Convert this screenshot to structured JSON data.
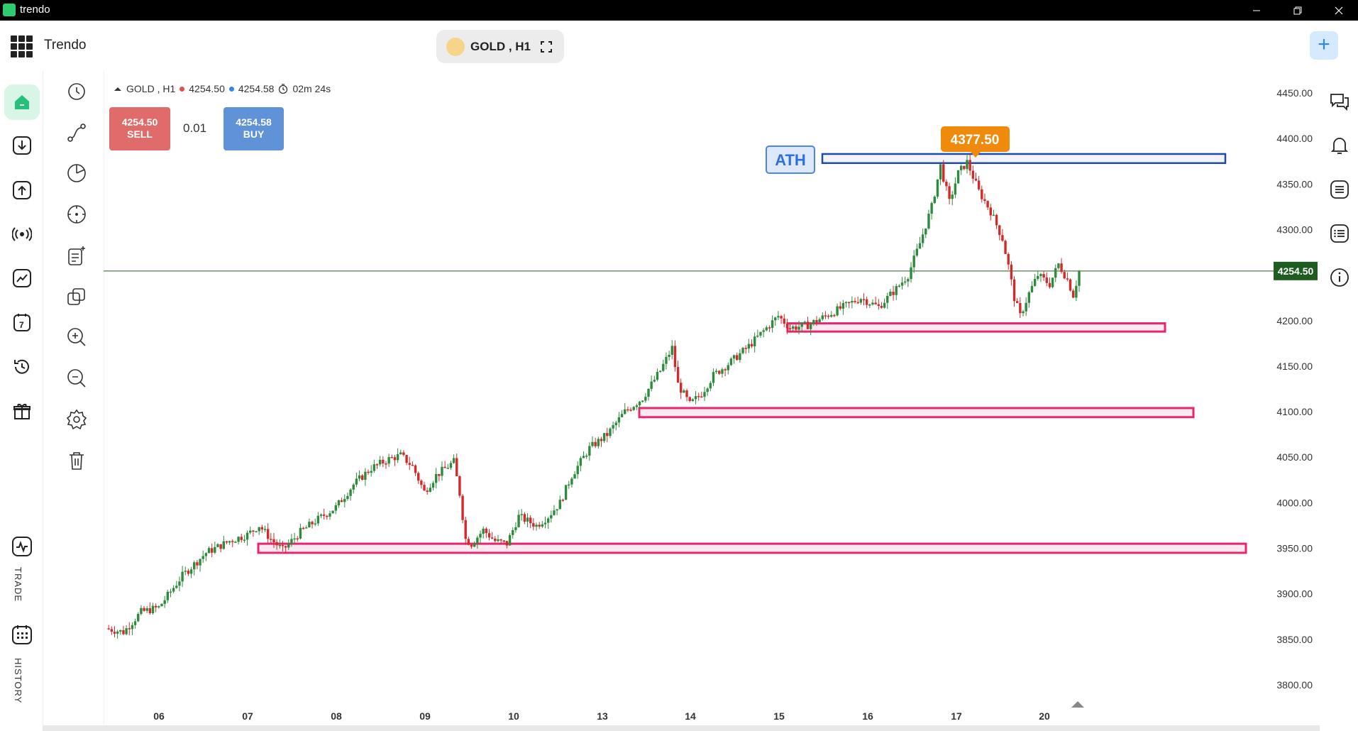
{
  "app": {
    "name": "trendo",
    "brand": "Trendo"
  },
  "symbol": {
    "label": "GOLD , H1"
  },
  "info": {
    "symbol": "GOLD , H1",
    "bid": "4254.50",
    "ask": "4254.58",
    "timer": "02m 24s"
  },
  "trade": {
    "sell_price": "4254.50",
    "sell_label": "SELL",
    "buy_price": "4254.58",
    "buy_label": "BUY",
    "lot": "0.01"
  },
  "nav": {
    "trade_label": "TRADE",
    "history_label": "HISTORY"
  },
  "colors": {
    "bull": "#2e8b3e",
    "bear": "#d12a2a",
    "zone": "#e8256f",
    "ath": "#1f4aa8",
    "peak": "#f08a0c",
    "price": "#1f5c1f"
  },
  "chart_data": {
    "type": "candlestick",
    "symbol": "GOLD",
    "timeframe": "H1",
    "x_ticks": [
      "06",
      "07",
      "08",
      "09",
      "10",
      "13",
      "14",
      "15",
      "16",
      "17",
      "20"
    ],
    "y_ticks": [
      "4450.00",
      "4400.00",
      "4350.00",
      "4300.00",
      "4250.00",
      "4200.00",
      "4150.00",
      "4100.00",
      "4050.00",
      "4000.00",
      "3950.00",
      "3900.00",
      "3850.00",
      "3800.00"
    ],
    "ylim": [
      3785,
      4475
    ],
    "current_price": "4254.50",
    "peak_label": "4377.50",
    "ath_label": "ATH",
    "ath_level": 4380,
    "zones": [
      {
        "low": 4188,
        "high": 4197
      },
      {
        "low": 4094,
        "high": 4104
      },
      {
        "low": 3945,
        "high": 3955
      }
    ],
    "anchors": [
      {
        "i": 0,
        "p": 3862
      },
      {
        "i": 6,
        "p": 3858
      },
      {
        "i": 12,
        "p": 3880
      },
      {
        "i": 18,
        "p": 3885
      },
      {
        "i": 26,
        "p": 3920
      },
      {
        "i": 34,
        "p": 3945
      },
      {
        "i": 42,
        "p": 3958
      },
      {
        "i": 48,
        "p": 3965
      },
      {
        "i": 52,
        "p": 3975
      },
      {
        "i": 56,
        "p": 3960
      },
      {
        "i": 60,
        "p": 3948
      },
      {
        "i": 66,
        "p": 3968
      },
      {
        "i": 72,
        "p": 3982
      },
      {
        "i": 78,
        "p": 3995
      },
      {
        "i": 84,
        "p": 4020
      },
      {
        "i": 90,
        "p": 4038
      },
      {
        "i": 96,
        "p": 4048
      },
      {
        "i": 100,
        "p": 4052
      },
      {
        "i": 104,
        "p": 4040
      },
      {
        "i": 108,
        "p": 4012
      },
      {
        "i": 112,
        "p": 4030
      },
      {
        "i": 116,
        "p": 4040
      },
      {
        "i": 118,
        "p": 4045
      },
      {
        "i": 120,
        "p": 4010
      },
      {
        "i": 122,
        "p": 3960
      },
      {
        "i": 124,
        "p": 3955
      },
      {
        "i": 128,
        "p": 3970
      },
      {
        "i": 132,
        "p": 3958
      },
      {
        "i": 136,
        "p": 3955
      },
      {
        "i": 140,
        "p": 3985
      },
      {
        "i": 146,
        "p": 3975
      },
      {
        "i": 150,
        "p": 3985
      },
      {
        "i": 154,
        "p": 4000
      },
      {
        "i": 158,
        "p": 4030
      },
      {
        "i": 164,
        "p": 4060
      },
      {
        "i": 170,
        "p": 4075
      },
      {
        "i": 176,
        "p": 4100
      },
      {
        "i": 182,
        "p": 4115
      },
      {
        "i": 188,
        "p": 4145
      },
      {
        "i": 192,
        "p": 4170
      },
      {
        "i": 194,
        "p": 4130
      },
      {
        "i": 198,
        "p": 4108
      },
      {
        "i": 202,
        "p": 4120
      },
      {
        "i": 206,
        "p": 4140
      },
      {
        "i": 212,
        "p": 4155
      },
      {
        "i": 218,
        "p": 4172
      },
      {
        "i": 224,
        "p": 4192
      },
      {
        "i": 228,
        "p": 4205
      },
      {
        "i": 232,
        "p": 4192
      },
      {
        "i": 238,
        "p": 4195
      },
      {
        "i": 244,
        "p": 4205
      },
      {
        "i": 250,
        "p": 4215
      },
      {
        "i": 256,
        "p": 4225
      },
      {
        "i": 262,
        "p": 4215
      },
      {
        "i": 268,
        "p": 4235
      },
      {
        "i": 272,
        "p": 4250
      },
      {
        "i": 276,
        "p": 4285
      },
      {
        "i": 280,
        "p": 4325
      },
      {
        "i": 283,
        "p": 4370
      },
      {
        "i": 286,
        "p": 4330
      },
      {
        "i": 289,
        "p": 4362
      },
      {
        "i": 292,
        "p": 4374
      },
      {
        "i": 296,
        "p": 4342
      },
      {
        "i": 300,
        "p": 4320
      },
      {
        "i": 304,
        "p": 4290
      },
      {
        "i": 306,
        "p": 4260
      },
      {
        "i": 308,
        "p": 4225
      },
      {
        "i": 310,
        "p": 4205
      },
      {
        "i": 313,
        "p": 4230
      },
      {
        "i": 316,
        "p": 4250
      },
      {
        "i": 320,
        "p": 4240
      },
      {
        "i": 323,
        "p": 4262
      },
      {
        "i": 326,
        "p": 4245
      },
      {
        "i": 328,
        "p": 4228
      },
      {
        "i": 330,
        "p": 4254
      }
    ]
  }
}
